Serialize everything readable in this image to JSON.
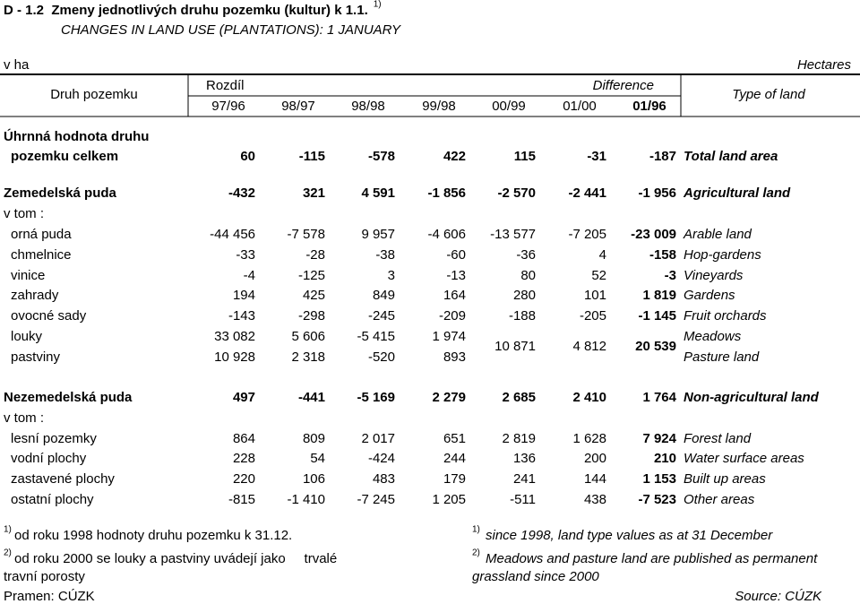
{
  "header": {
    "title": "D - 1.2  Zmeny jednotlivých druhu pozemku (kultur) k 1.1.",
    "title_note": "1)",
    "subtitle": "CHANGES IN LAND USE (PLANTATIONS): 1 JANUARY",
    "unit_cz": "v ha",
    "unit_en": "Hectares"
  },
  "table": {
    "head": {
      "kind_cz": "Druh pozemku",
      "diff_cz": "Rozdíl",
      "diff_en": "Difference",
      "kind_en": "Type of land",
      "periods": [
        "97/96",
        "98/97",
        "98/98",
        "99/98",
        "00/99",
        "01/00",
        "01/96"
      ]
    },
    "rows": [
      {
        "label": [
          "Úhrnná hodnota druhu",
          "pozemku celkem"
        ],
        "values": [
          "60",
          "-115",
          "-578",
          "422",
          "115",
          "-31",
          "-187"
        ],
        "label_en": "Total land area"
      },
      {
        "label": "Zemedelská puda",
        "values": [
          "-432",
          "321",
          "4 591",
          "-1 856",
          "-2 570",
          "-2 441",
          "-1 956"
        ],
        "label_en": "Agricultural land"
      },
      {
        "label": "v tom :"
      },
      {
        "label": "orná puda",
        "values": [
          "-44 456",
          "-7 578",
          "9 957",
          "-4 606",
          "-13 577",
          "-7 205",
          "-23 009"
        ],
        "label_en": "Arable land"
      },
      {
        "label": "chmelnice",
        "values": [
          "-33",
          "-28",
          "-38",
          "-60",
          "-36",
          "4",
          "-158"
        ],
        "label_en": "Hop-gardens"
      },
      {
        "label": "vinice",
        "values": [
          "-4",
          "-125",
          "3",
          "-13",
          "80",
          "52",
          "-3"
        ],
        "label_en": "Vineyards"
      },
      {
        "label": "zahrady",
        "values": [
          "194",
          "425",
          "849",
          "164",
          "280",
          "101",
          "1 819"
        ],
        "label_en": "Gardens"
      },
      {
        "label": "ovocné sady",
        "values": [
          "-143",
          "-298",
          "-245",
          "-209",
          "-188",
          "-205",
          "-1 145"
        ],
        "label_en": "Fruit orchards"
      },
      {
        "labels": [
          "louky",
          "pastviny"
        ],
        "values": [
          [
            "33 082",
            "5 606",
            "-5 415",
            "1 974"
          ],
          [
            "10 928",
            "2 318",
            "-520",
            "893"
          ]
        ],
        "shared_values": [
          "10 871",
          "4 812",
          "20 539"
        ],
        "labels_en": [
          "Meadows",
          "Pasture land"
        ]
      },
      {
        "label": "Nezemedelská puda",
        "values": [
          "497",
          "-441",
          "-5 169",
          "2 279",
          "2 685",
          "2 410",
          "1 764"
        ],
        "label_en": "Non-agricultural land"
      },
      {
        "label": "v tom :"
      },
      {
        "label": "lesní pozemky",
        "values": [
          "864",
          "809",
          "2 017",
          "651",
          "2 819",
          "1 628",
          "7 924"
        ],
        "label_en": "Forest land"
      },
      {
        "label": "vodní plochy",
        "values": [
          "228",
          "54",
          "-424",
          "244",
          "136",
          "200",
          "210"
        ],
        "label_en": "Water surface areas"
      },
      {
        "label": "zastavené plochy",
        "values": [
          "220",
          "106",
          "483",
          "179",
          "241",
          "144",
          "1 153"
        ],
        "label_en": "Built up areas"
      },
      {
        "label": "ostatní plochy",
        "values": [
          "-815",
          "-1 410",
          "-7 245",
          "1 205",
          "-511",
          "438",
          "-7 523"
        ],
        "label_en": "Other areas"
      }
    ]
  },
  "footnotes": [
    {
      "mark": "1)",
      "cz": [
        "od roku 1998 hodnoty druhu pozemku k 31.12."
      ],
      "en": [
        "since 1998, land type values as at 31 December"
      ]
    },
    {
      "mark": "2)",
      "cz": [
        "od roku 2000 se louky a pastviny uvádejí jako     trvalé",
        "travní porosty"
      ],
      "en": [
        "Meadows and pasture land are published as permanent",
        "grassland since 2000"
      ]
    }
  ],
  "source": {
    "cz": "Pramen: CÚZK",
    "en": "Source: CÚZK"
  }
}
